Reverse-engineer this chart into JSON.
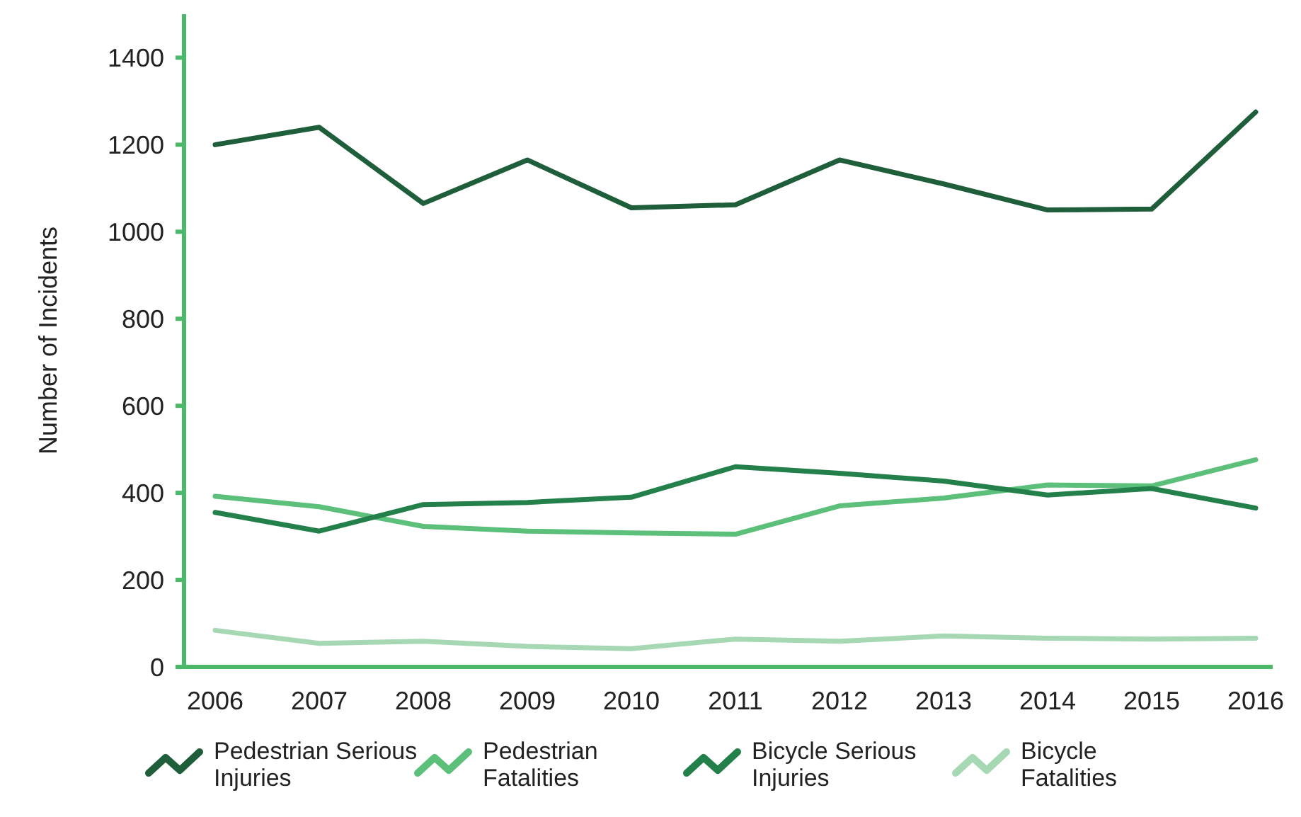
{
  "chart_data": {
    "type": "line",
    "ylabel": "Number of Incidents",
    "categories": [
      "2006",
      "2007",
      "2008",
      "2009",
      "2010",
      "2011",
      "2012",
      "2013",
      "2014",
      "2015",
      "2016"
    ],
    "ylim": [
      0,
      1500
    ],
    "yticks": [
      0,
      200,
      400,
      600,
      800,
      1000,
      1200,
      1400
    ],
    "grid": false,
    "legend": "bottom",
    "marker": "none",
    "line_style": "solid",
    "series": [
      {
        "name": "Pedestrian Serious Injuries",
        "color": "#1f5e3a",
        "values": [
          1200,
          1240,
          1065,
          1165,
          1055,
          1062,
          1165,
          1110,
          1050,
          1052,
          1275
        ]
      },
      {
        "name": "Pedestrian Fatalities",
        "color": "#5cbf7a",
        "values": [
          392,
          368,
          323,
          312,
          308,
          305,
          370,
          388,
          418,
          416,
          476
        ]
      },
      {
        "name": "Bicycle Serious Injuries",
        "color": "#24804a",
        "values": [
          355,
          312,
          373,
          378,
          390,
          460,
          445,
          427,
          395,
          410,
          365
        ]
      },
      {
        "name": "Bicycle Fatalities",
        "color": "#a6d8b3",
        "values": [
          84,
          54,
          59,
          47,
          42,
          64,
          59,
          71,
          66,
          64,
          66
        ]
      }
    ]
  }
}
